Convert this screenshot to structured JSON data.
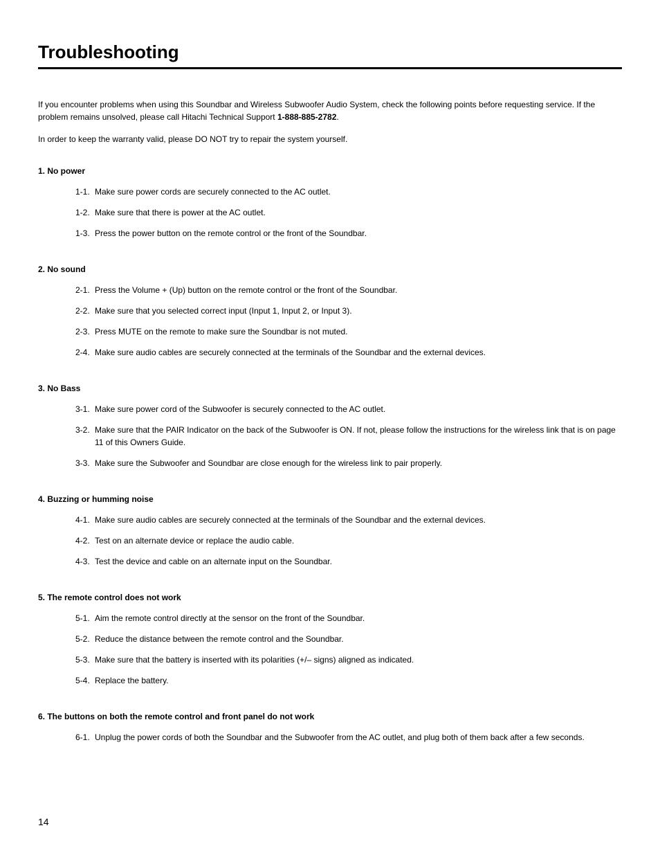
{
  "title": "Troubleshooting",
  "intro": {
    "line1": "If you encounter problems when using this Soundbar and Wireless Subwoofer Audio System, check the following points before requesting service. If the problem remains unsolved, please call Hitachi Technical Support ",
    "phone": "1-888-885-2782",
    "period": "."
  },
  "warranty": "In order to keep the warranty valid, please DO NOT try to repair the system yourself.",
  "sections": [
    {
      "heading": "1. No power",
      "steps": [
        {
          "num": "1-1.",
          "text": "Make sure power cords are securely connected to the AC outlet."
        },
        {
          "num": "1-2.",
          "text": "Make sure that there is power at the AC outlet."
        },
        {
          "num": "1-3.",
          "text": "Press the power button on the remote control or the front of the Soundbar."
        }
      ]
    },
    {
      "heading": "2. No sound",
      "steps": [
        {
          "num": "2-1.",
          "text": "Press the Volume + (Up) button on the remote control or the front of the Soundbar."
        },
        {
          "num": "2-2.",
          "text": "Make sure that you selected correct input (Input 1, Input 2, or Input 3)."
        },
        {
          "num": "2-3.",
          "text": "Press MUTE on the remote to make sure the Soundbar is not muted."
        },
        {
          "num": "2-4.",
          "text": "Make sure audio cables are securely connected at the terminals of the Soundbar and the external devices."
        }
      ]
    },
    {
      "heading": "3. No Bass",
      "steps": [
        {
          "num": "3-1.",
          "text": "Make sure power cord of the Subwoofer is securely connected to the AC outlet."
        },
        {
          "num": "3-2.",
          "text": "Make sure that the PAIR Indicator on the back of the Subwoofer is ON. If not, please follow the instructions for the wireless link that is on page 11 of this Owners Guide."
        },
        {
          "num": "3-3.",
          "text": "Make sure the Subwoofer and Soundbar are close enough for the wireless link to pair properly."
        }
      ]
    },
    {
      "heading": "4. Buzzing or humming noise",
      "steps": [
        {
          "num": "4-1.",
          "text": "Make sure audio cables are securely connected at the terminals of the Soundbar and the external devices."
        },
        {
          "num": "4-2.",
          "text": "Test on an alternate device or replace the audio cable."
        },
        {
          "num": "4-3.",
          "text": "Test the device and cable on an alternate input on the Soundbar."
        }
      ]
    },
    {
      "heading": "5. The remote control does not work",
      "steps": [
        {
          "num": "5-1.",
          "text": "Aim the remote control directly at the sensor on the front of the Soundbar."
        },
        {
          "num": "5-2.",
          "text": "Reduce the distance between the remote control and the Soundbar."
        },
        {
          "num": "5-3.",
          "text": "Make sure that the battery is inserted with its polarities (+/– signs) aligned as indicated."
        },
        {
          "num": "5-4.",
          "text": "Replace the battery."
        }
      ]
    },
    {
      "heading": "6. The buttons on both the remote control and front panel do not work",
      "steps": [
        {
          "num": "6-1.",
          "text": "Unplug the power cords of both the Soundbar and the Subwoofer from the AC outlet, and plug both of them back after a few seconds."
        }
      ]
    }
  ],
  "pageNumber": "14"
}
